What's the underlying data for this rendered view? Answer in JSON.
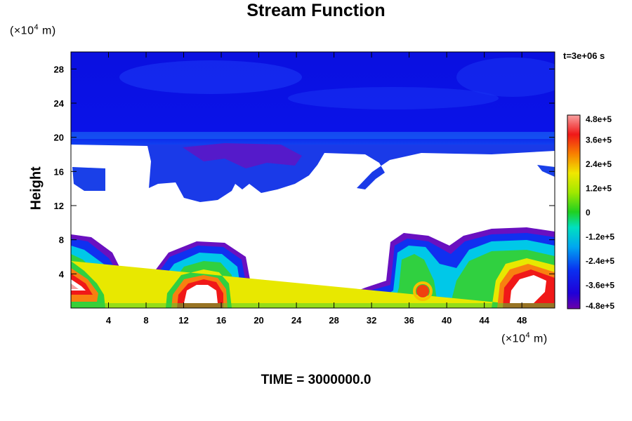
{
  "chart_data": {
    "type": "heatmap",
    "title": "Stream Function",
    "ylabel": "Height",
    "y_unit_prefix": "(×10",
    "y_unit_exp": "4",
    "y_unit_suffix": " m)",
    "x_unit_prefix": "(×10",
    "x_unit_exp": "4",
    "x_unit_suffix": " m)",
    "time_label": "t=3e+06 s",
    "footer": "TIME = 3000000.0",
    "xlim": [
      0,
      51.5
    ],
    "ylim": [
      0,
      30
    ],
    "x_ticks": [
      4,
      8,
      12,
      16,
      20,
      24,
      28,
      32,
      36,
      40,
      44,
      48
    ],
    "x_tick_labels": [
      "4",
      "8",
      "12",
      "16",
      "20",
      "24",
      "28",
      "32",
      "36",
      "40",
      "44",
      "48"
    ],
    "y_ticks": [
      4,
      8,
      12,
      16,
      20,
      24,
      28
    ],
    "y_tick_labels": [
      "4",
      "8",
      "12",
      "16",
      "20",
      "24",
      "28"
    ],
    "colorbar": {
      "range": [
        -480000,
        480000
      ],
      "tick_values": [
        480000,
        360000,
        240000,
        120000,
        0,
        -120000,
        -240000,
        -360000,
        -480000
      ],
      "tick_labels": [
        "4.8e+5",
        "3.6e+5",
        "2.4e+5",
        "1.2e+5",
        "0",
        "-1.2e+5",
        "-2.4e+5",
        "-3.6e+5",
        "-4.8e+5"
      ]
    },
    "grid": false
  },
  "colors": {
    "deep_purple": "#6a00a8",
    "blue": "#0a10e6",
    "cyan": "#00d8e8",
    "green": "#20d020",
    "yellow": "#e8f000",
    "red": "#f01818",
    "pink": "#f8a0a0"
  }
}
